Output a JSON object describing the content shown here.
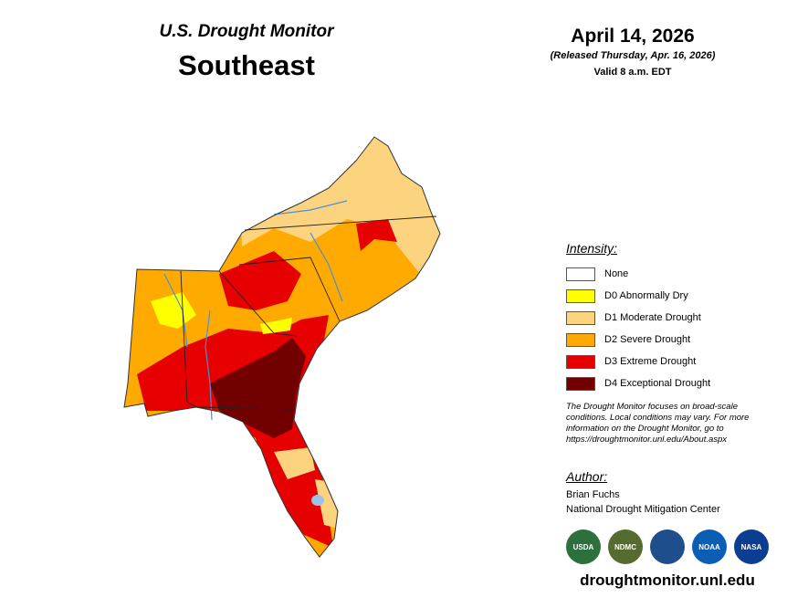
{
  "header": {
    "subtitle": "U.S. Drought Monitor",
    "title": "Southeast",
    "date": "April 14, 2026",
    "released": "(Released Thursday, Apr. 16, 2026)",
    "valid": "Valid 8 a.m. EDT"
  },
  "legend": {
    "title": "Intensity:",
    "items": [
      {
        "label": "None",
        "color": "#ffffff"
      },
      {
        "label": "D0 Abnormally Dry",
        "color": "#ffff00"
      },
      {
        "label": "D1 Moderate Drought",
        "color": "#fcd37f"
      },
      {
        "label": "D2 Severe Drought",
        "color": "#ffaa00"
      },
      {
        "label": "D3 Extreme Drought",
        "color": "#e60000"
      },
      {
        "label": "D4 Exceptional Drought",
        "color": "#730000"
      }
    ]
  },
  "note": "The Drought Monitor focuses on broad-scale conditions. Local conditions may vary. For more information on the Drought Monitor, go to https://droughtmonitor.unl.edu/About.aspx",
  "author": {
    "title": "Author:",
    "name": "Brian Fuchs",
    "org": "National Drought Mitigation Center"
  },
  "logos": [
    {
      "label": "USDA",
      "color": "#2e6f3e"
    },
    {
      "label": "NDMC",
      "color": "#556b2f"
    },
    {
      "label": "",
      "color": "#1f4e8c"
    },
    {
      "label": "NOAA",
      "color": "#0a5fb4"
    },
    {
      "label": "NASA",
      "color": "#0b3d91"
    }
  ],
  "url": "droughtmonitor.unl.edu"
}
